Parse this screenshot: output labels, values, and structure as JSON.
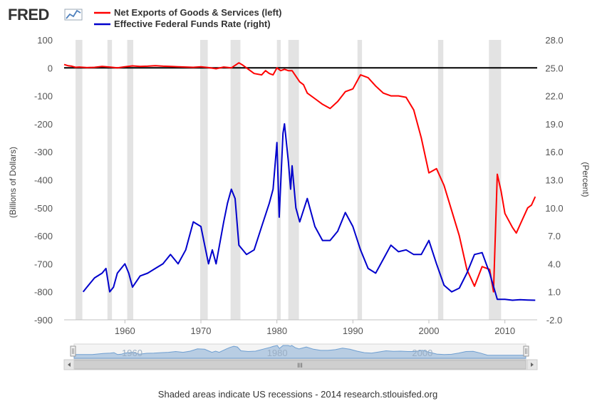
{
  "logo": {
    "text": "FRED"
  },
  "footer": {
    "note": "Shaded areas indicate US recessions - 2014 research.stlouisfed.org"
  },
  "navigator": {
    "labels": [
      "1960",
      "1980",
      "2000"
    ],
    "scroll_grip": "III"
  },
  "colors": {
    "left_series": "#ff0000",
    "right_series": "#0000cc",
    "recession": "#e3e3e3",
    "zero_line": "#000000",
    "navigator_fill": "#b8cde3"
  },
  "chart_data": {
    "type": "line",
    "title": "",
    "xlabel": "",
    "x_ticks": [
      "1960",
      "1970",
      "1980",
      "1990",
      "2000",
      "2010"
    ],
    "x_range": [
      1952.0,
      2014.25
    ],
    "left_axis": {
      "label": "(Billions of Dollars)",
      "range": [
        -900,
        100
      ],
      "ticks": [
        "100",
        "0",
        "-100",
        "-200",
        "-300",
        "-400",
        "-500",
        "-600",
        "-700",
        "-800",
        "-900"
      ]
    },
    "right_axis": {
      "label": "(Percent)",
      "range": [
        -2.0,
        28.0
      ],
      "ticks": [
        "28.0",
        "25.0",
        "22.0",
        "19.0",
        "16.0",
        "13.0",
        "10.0",
        "7.0",
        "4.0",
        "1.0",
        "-2.0"
      ]
    },
    "zero_line": 0,
    "grid": false,
    "legend_position": "top-left",
    "recessions": [
      [
        1953.5,
        1954.4
      ],
      [
        1957.7,
        1958.3
      ],
      [
        1960.3,
        1961.1
      ],
      [
        1969.9,
        1970.9
      ],
      [
        1973.9,
        1975.2
      ],
      [
        1980.0,
        1980.5
      ],
      [
        1981.5,
        1982.9
      ],
      [
        1990.6,
        1991.2
      ],
      [
        2001.2,
        2001.9
      ],
      [
        2007.9,
        2009.5
      ]
    ],
    "series": [
      {
        "name": "Net Exports of Goods & Services (left)",
        "axis": "left",
        "color": "#ff0000",
        "points": [
          [
            1952.0,
            12
          ],
          [
            1952.5,
            8
          ],
          [
            1953.0,
            6
          ],
          [
            1953.5,
            2
          ],
          [
            1954.0,
            3
          ],
          [
            1954.5,
            2
          ],
          [
            1955.0,
            1
          ],
          [
            1956.0,
            2
          ],
          [
            1957.0,
            5
          ],
          [
            1958.0,
            3
          ],
          [
            1959.0,
            0
          ],
          [
            1960.0,
            4
          ],
          [
            1961.0,
            7
          ],
          [
            1962.0,
            5
          ],
          [
            1963.0,
            6
          ],
          [
            1964.0,
            8
          ],
          [
            1965.0,
            6
          ],
          [
            1966.0,
            5
          ],
          [
            1967.0,
            4
          ],
          [
            1968.0,
            3
          ],
          [
            1969.0,
            2
          ],
          [
            1970.0,
            4
          ],
          [
            1971.0,
            1
          ],
          [
            1972.0,
            -3
          ],
          [
            1973.0,
            3
          ],
          [
            1974.0,
            0
          ],
          [
            1975.0,
            18
          ],
          [
            1975.5,
            10
          ],
          [
            1976.0,
            0
          ],
          [
            1977.0,
            -20
          ],
          [
            1978.0,
            -25
          ],
          [
            1978.5,
            -10
          ],
          [
            1979.0,
            -20
          ],
          [
            1979.5,
            -25
          ],
          [
            1980.0,
            0
          ],
          [
            1980.5,
            -10
          ],
          [
            1981.0,
            -5
          ],
          [
            1981.5,
            -10
          ],
          [
            1982.0,
            -10
          ],
          [
            1983.0,
            -50
          ],
          [
            1983.5,
            -60
          ],
          [
            1984.0,
            -90
          ],
          [
            1985.0,
            -110
          ],
          [
            1986.0,
            -130
          ],
          [
            1987.0,
            -145
          ],
          [
            1988.0,
            -120
          ],
          [
            1989.0,
            -85
          ],
          [
            1990.0,
            -75
          ],
          [
            1991.0,
            -25
          ],
          [
            1992.0,
            -35
          ],
          [
            1993.0,
            -65
          ],
          [
            1994.0,
            -90
          ],
          [
            1995.0,
            -100
          ],
          [
            1996.0,
            -100
          ],
          [
            1997.0,
            -105
          ],
          [
            1998.0,
            -150
          ],
          [
            1999.0,
            -250
          ],
          [
            2000.0,
            -375
          ],
          [
            2001.0,
            -360
          ],
          [
            2002.0,
            -420
          ],
          [
            2003.0,
            -510
          ],
          [
            2004.0,
            -600
          ],
          [
            2005.0,
            -720
          ],
          [
            2006.0,
            -780
          ],
          [
            2007.0,
            -710
          ],
          [
            2008.0,
            -720
          ],
          [
            2008.5,
            -800
          ],
          [
            2009.0,
            -380
          ],
          [
            2009.5,
            -440
          ],
          [
            2010.0,
            -520
          ],
          [
            2011.0,
            -570
          ],
          [
            2011.5,
            -590
          ],
          [
            2012.0,
            -560
          ],
          [
            2013.0,
            -500
          ],
          [
            2013.5,
            -490
          ],
          [
            2014.0,
            -460
          ]
        ]
      },
      {
        "name": "Effective Federal Funds Rate (right)",
        "axis": "right",
        "color": "#0000cc",
        "points": [
          [
            1954.5,
            1.0
          ],
          [
            1955.0,
            1.5
          ],
          [
            1956.0,
            2.5
          ],
          [
            1957.0,
            3.0
          ],
          [
            1957.5,
            3.5
          ],
          [
            1958.0,
            1.0
          ],
          [
            1958.5,
            1.5
          ],
          [
            1959.0,
            3.0
          ],
          [
            1960.0,
            4.0
          ],
          [
            1960.5,
            3.0
          ],
          [
            1961.0,
            1.5
          ],
          [
            1962.0,
            2.7
          ],
          [
            1963.0,
            3.0
          ],
          [
            1964.0,
            3.5
          ],
          [
            1965.0,
            4.0
          ],
          [
            1966.0,
            5.0
          ],
          [
            1967.0,
            4.0
          ],
          [
            1968.0,
            5.5
          ],
          [
            1969.0,
            8.5
          ],
          [
            1970.0,
            8.0
          ],
          [
            1970.5,
            6.0
          ],
          [
            1971.0,
            4.0
          ],
          [
            1971.5,
            5.5
          ],
          [
            1972.0,
            4.0
          ],
          [
            1973.0,
            8.5
          ],
          [
            1973.5,
            10.5
          ],
          [
            1974.0,
            12.0
          ],
          [
            1974.5,
            11.0
          ],
          [
            1975.0,
            6.0
          ],
          [
            1976.0,
            5.0
          ],
          [
            1977.0,
            5.5
          ],
          [
            1978.0,
            8.0
          ],
          [
            1979.0,
            10.5
          ],
          [
            1979.5,
            12.0
          ],
          [
            1980.0,
            17.0
          ],
          [
            1980.3,
            9.0
          ],
          [
            1980.8,
            18.0
          ],
          [
            1981.0,
            19.0
          ],
          [
            1981.5,
            15.0
          ],
          [
            1981.8,
            12.0
          ],
          [
            1982.0,
            14.5
          ],
          [
            1982.5,
            10.0
          ],
          [
            1983.0,
            8.5
          ],
          [
            1984.0,
            11.0
          ],
          [
            1985.0,
            8.0
          ],
          [
            1986.0,
            6.5
          ],
          [
            1987.0,
            6.5
          ],
          [
            1988.0,
            7.5
          ],
          [
            1989.0,
            9.5
          ],
          [
            1990.0,
            8.0
          ],
          [
            1991.0,
            5.5
          ],
          [
            1992.0,
            3.5
          ],
          [
            1993.0,
            3.0
          ],
          [
            1994.0,
            4.5
          ],
          [
            1995.0,
            6.0
          ],
          [
            1996.0,
            5.3
          ],
          [
            1997.0,
            5.5
          ],
          [
            1998.0,
            5.0
          ],
          [
            1999.0,
            5.0
          ],
          [
            2000.0,
            6.5
          ],
          [
            2001.0,
            4.0
          ],
          [
            2002.0,
            1.7
          ],
          [
            2003.0,
            1.0
          ],
          [
            2004.0,
            1.4
          ],
          [
            2005.0,
            3.0
          ],
          [
            2006.0,
            5.0
          ],
          [
            2007.0,
            5.2
          ],
          [
            2008.0,
            3.0
          ],
          [
            2009.0,
            0.2
          ],
          [
            2010.0,
            0.2
          ],
          [
            2011.0,
            0.1
          ],
          [
            2012.0,
            0.15
          ],
          [
            2013.0,
            0.12
          ],
          [
            2014.0,
            0.1
          ]
        ]
      }
    ]
  }
}
